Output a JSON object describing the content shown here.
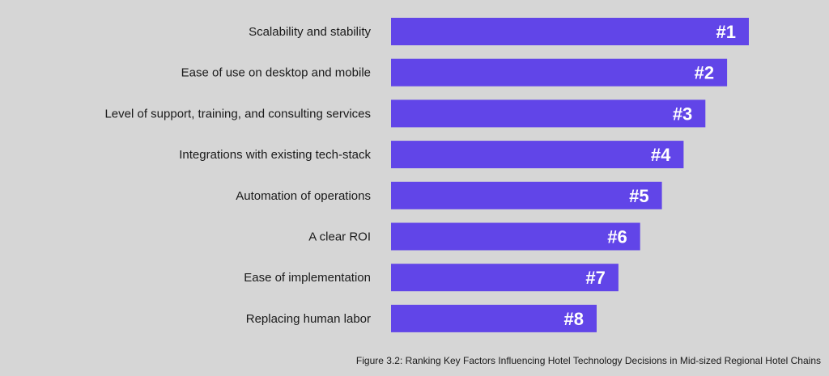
{
  "chart_data": {
    "type": "bar",
    "orientation": "horizontal",
    "categories": [
      "Scalability and stability",
      "Ease of use on desktop and mobile",
      "Level of support, training, and consulting services",
      "Integrations with existing tech-stack",
      "Automation of operations",
      "A clear ROI",
      "Ease of implementation",
      "Replacing human labor"
    ],
    "values": [
      8,
      7,
      6,
      5,
      4,
      3,
      2,
      1
    ],
    "data_labels": [
      "#1",
      "#2",
      "#3",
      "#4",
      "#5",
      "#6",
      "#7",
      "#8"
    ],
    "title": "Figure 3.2: Ranking Key Factors Influencing Hotel Technology Decisions in Mid-sized Regional Hotel Chains",
    "xlabel": "",
    "ylabel": "",
    "grid": false,
    "legend": "none",
    "colors": {
      "bar": "#6145e8",
      "background": "#d6d6d6",
      "label": "#1a1a1a",
      "rank_text": "#ffffff"
    }
  }
}
